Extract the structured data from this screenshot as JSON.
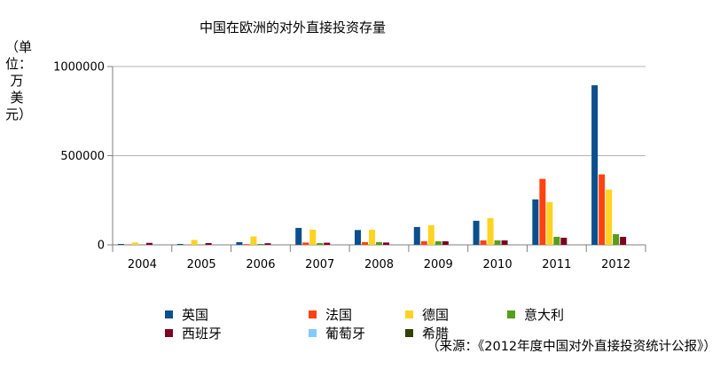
{
  "chart_data": {
    "type": "bar",
    "title": "中国在欧洲的对外直接投资存量",
    "ylabel": "（单位：万美元）",
    "xlabel": "",
    "ylim": [
      0,
      1000000
    ],
    "yticks": [
      "0",
      "500000",
      "1000000"
    ],
    "categories": [
      "2004",
      "2005",
      "2006",
      "2007",
      "2008",
      "2009",
      "2010",
      "2011",
      "2012"
    ],
    "series": [
      {
        "name": "英国",
        "color": "#0b4f8c",
        "values": [
          5000,
          5000,
          15000,
          95000,
          83000,
          100000,
          135000,
          255000,
          895000
        ]
      },
      {
        "name": "法国",
        "color": "#ff420e",
        "values": [
          2000,
          1000,
          4000,
          13000,
          15000,
          20000,
          25000,
          370000,
          395000
        ]
      },
      {
        "name": "德国",
        "color": "#ffd320",
        "values": [
          13000,
          27000,
          47000,
          85000,
          85000,
          110000,
          150000,
          240000,
          310000
        ]
      },
      {
        "name": "意大利",
        "color": "#579d1c",
        "values": [
          2000,
          2000,
          5000,
          10000,
          15000,
          20000,
          25000,
          45000,
          60000
        ]
      },
      {
        "name": "西班牙",
        "color": "#7e0021",
        "values": [
          11000,
          10000,
          9000,
          12000,
          13000,
          20000,
          25000,
          40000,
          45000
        ]
      },
      {
        "name": "葡萄牙",
        "color": "#83caff",
        "values": [
          0,
          0,
          0,
          0,
          0,
          0,
          0,
          0,
          0
        ]
      },
      {
        "name": "希腊",
        "color": "#314004",
        "values": [
          0,
          0,
          0,
          0,
          0,
          0,
          0,
          0,
          0
        ]
      }
    ],
    "grid": true,
    "legend_position": "bottom"
  },
  "source": "（来源：《2012年度中国对外直接投资统计公报》）"
}
